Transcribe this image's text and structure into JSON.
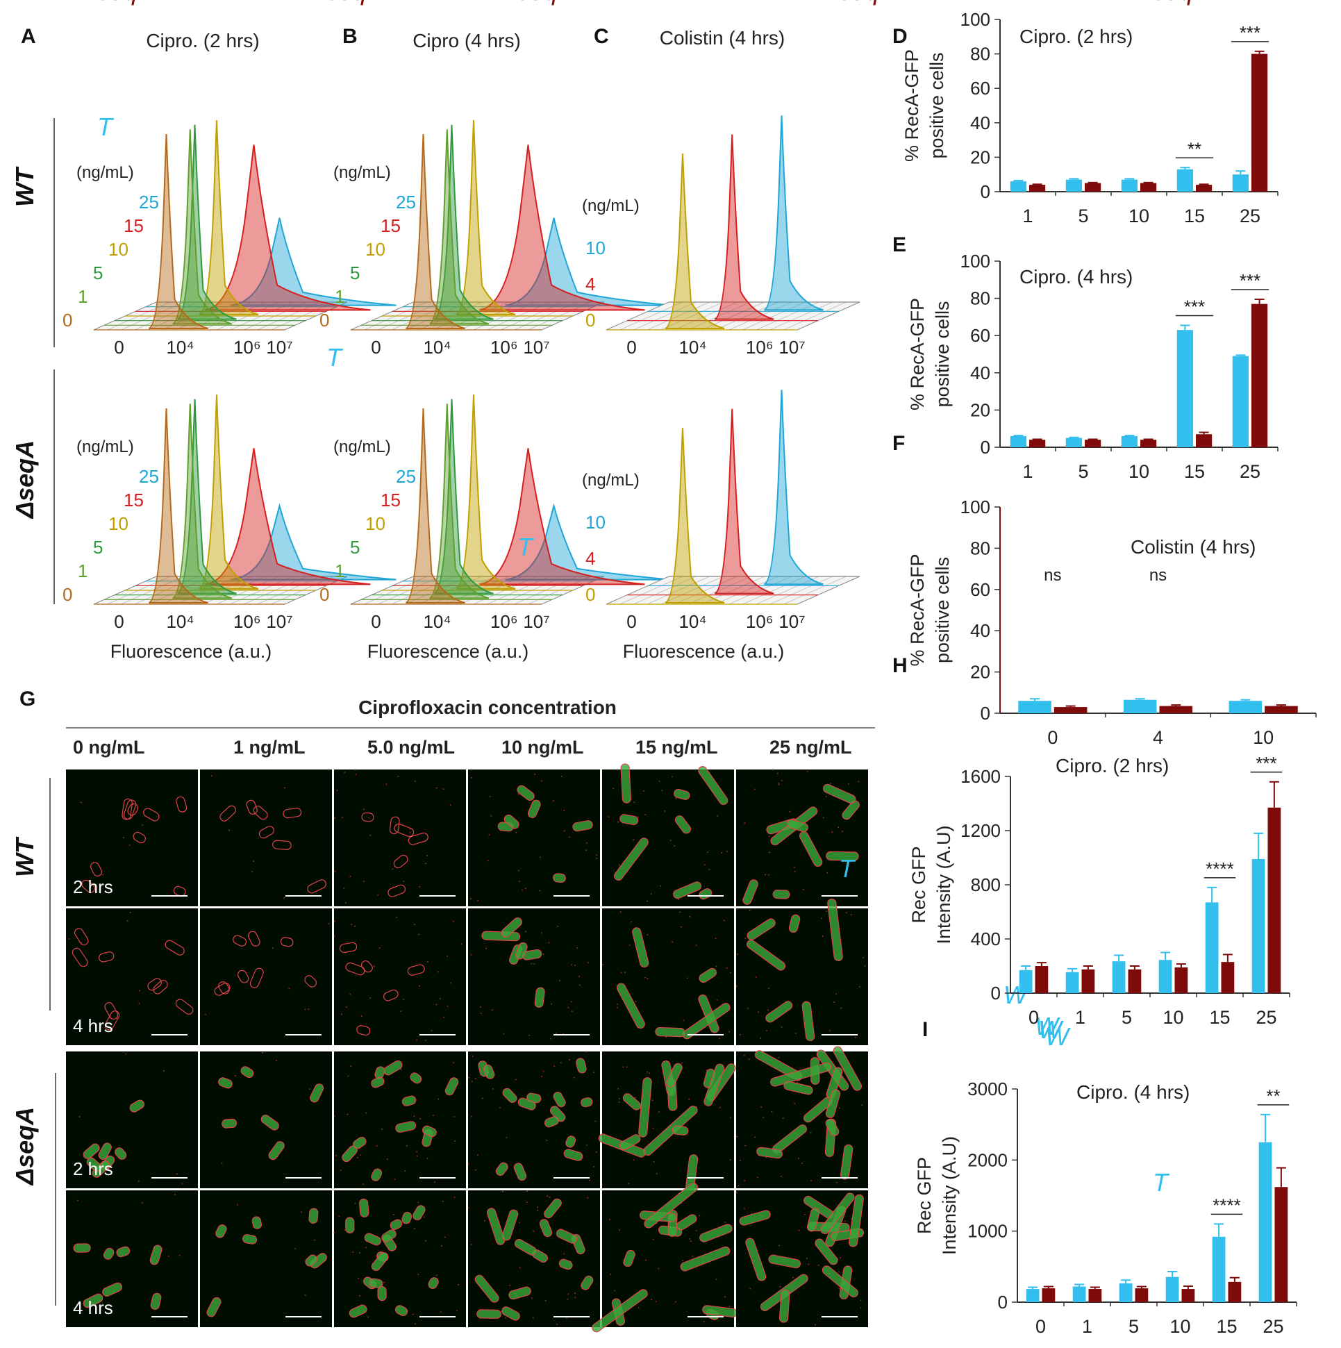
{
  "colors": {
    "wt": "#33bfee",
    "seqA": "#7f0a0a",
    "c0": "#b56a1a",
    "c1": "#5fa02f",
    "c5": "#2e9a3e",
    "c10": "#c0a000",
    "c15": "#d42020",
    "c25": "#1fa6d6",
    "cell_outline": "#e0424b",
    "micro_bg": "#020d02"
  },
  "panel_letters": [
    "A",
    "B",
    "C",
    "D",
    "E",
    "F",
    "G",
    "H",
    "I"
  ],
  "row_labels": {
    "wt": "WT",
    "seqA": "ΔseqA"
  },
  "flow": {
    "titles": [
      "Cipro. (2 hrs)",
      "Cipro (4 hrs)",
      "Colistin  (4 hrs)"
    ],
    "unit_label": "(ng/mL)",
    "cipro_levels": [
      "0",
      "1",
      "5",
      "10",
      "15",
      "25"
    ],
    "colistin_levels": [
      "0",
      "4",
      "10"
    ],
    "axis_ticks": [
      "0",
      "10⁴",
      "10⁶",
      "10⁷"
    ],
    "xlabel": "Fluorescence (a.u.)"
  },
  "microscopy": {
    "title": "Ciprofloxacin  concentration",
    "columns": [
      "0 ng/mL",
      "1 ng/mL",
      "5.0 ng/mL",
      "10 ng/mL",
      "15 ng/mL",
      "25 ng/mL"
    ],
    "time_labels": [
      "2 hrs",
      "4 hrs",
      "2 hrs",
      "4 hrs"
    ]
  },
  "chart_data": [
    {
      "id": "D",
      "type": "bar",
      "title": "Cipro. (2 hrs)",
      "ylabel": [
        "% RecA-GFP",
        "positive cells"
      ],
      "ylim": [
        0,
        100
      ],
      "yticks": [
        "0",
        "20",
        "40",
        "60",
        "80",
        "100"
      ],
      "categories": [
        "1",
        "5",
        "10",
        "15",
        "25"
      ],
      "series": [
        {
          "name": "WT",
          "values": [
            6,
            7,
            7,
            13,
            10
          ],
          "errors": [
            0.5,
            0.5,
            0.5,
            1,
            2
          ]
        },
        {
          "name": "ΔseqA",
          "values": [
            4,
            5,
            5,
            4,
            80
          ],
          "errors": [
            0.3,
            0.3,
            0.3,
            0.3,
            1.5
          ]
        }
      ],
      "significance": [
        {
          "category": 3,
          "label": "**"
        },
        {
          "category": 4,
          "label": "***"
        }
      ]
    },
    {
      "id": "E",
      "type": "bar",
      "title": "Cipro. (4 hrs)",
      "ylabel": [
        "% RecA-GFP",
        "positive cells"
      ],
      "ylim": [
        0,
        100
      ],
      "yticks": [
        "0",
        "20",
        "40",
        "60",
        "80",
        "100"
      ],
      "categories": [
        "1",
        "5",
        "10",
        "15",
        "25"
      ],
      "series": [
        {
          "name": "WT",
          "values": [
            6,
            5,
            6,
            63,
            49
          ],
          "errors": [
            0.3,
            0.3,
            0.3,
            2.5,
            0.5
          ]
        },
        {
          "name": "ΔseqA",
          "values": [
            4,
            4,
            4,
            7,
            77
          ],
          "errors": [
            0.3,
            0.3,
            0.3,
            1,
            2.5
          ]
        }
      ],
      "significance": [
        {
          "category": 3,
          "label": "***"
        },
        {
          "category": 4,
          "label": "***"
        }
      ]
    },
    {
      "id": "F",
      "type": "bar",
      "title": "Colistin  (4 hrs)",
      "ylabel": [
        "% RecA-GFP",
        "positive cells"
      ],
      "ylim": [
        0,
        100
      ],
      "yticks": [
        "0",
        "20",
        "40",
        "60",
        "80",
        "100"
      ],
      "categories": [
        "0",
        "4",
        "10"
      ],
      "series": [
        {
          "name": "WT",
          "values": [
            6,
            6.5,
            6
          ],
          "errors": [
            1,
            0.5,
            0.5
          ]
        },
        {
          "name": "ΔseqA",
          "values": [
            3,
            3.5,
            3.5
          ],
          "errors": [
            0.5,
            0.5,
            0.5
          ]
        }
      ],
      "significance": [
        {
          "category": 0,
          "label": "ns"
        },
        {
          "category": 1,
          "label": "ns"
        }
      ]
    },
    {
      "id": "H",
      "type": "bar",
      "title": "Cipro. (2 hrs)",
      "ylabel": [
        "Rec GFP",
        "Intensity (A.U)"
      ],
      "ylim": [
        0,
        1600
      ],
      "yticks": [
        "0",
        "400",
        "800",
        "1200",
        "1600"
      ],
      "categories": [
        "0",
        "1",
        "5",
        "10",
        "15",
        "25"
      ],
      "series": [
        {
          "name": "WT",
          "values": [
            170,
            155,
            235,
            245,
            670,
            990
          ],
          "errors": [
            30,
            25,
            45,
            55,
            110,
            190
          ]
        },
        {
          "name": "ΔseqA",
          "values": [
            200,
            175,
            175,
            190,
            230,
            1370
          ],
          "errors": [
            25,
            25,
            25,
            25,
            55,
            190
          ]
        }
      ],
      "significance": [
        {
          "category": 4,
          "label": "****"
        },
        {
          "category": 5,
          "label": "***"
        }
      ]
    },
    {
      "id": "I",
      "type": "bar",
      "title": "Cipro. (4 hrs)",
      "ylabel": [
        "Rec GFP",
        "Intensity (A.U)"
      ],
      "ylim": [
        0,
        3000
      ],
      "yticks": [
        "0",
        "1000",
        "2000",
        "3000"
      ],
      "categories": [
        "0",
        "1",
        "5",
        "10",
        "15",
        "25"
      ],
      "series": [
        {
          "name": "WT",
          "values": [
            185,
            220,
            265,
            355,
            920,
            2250
          ],
          "errors": [
            25,
            30,
            45,
            75,
            180,
            390
          ]
        },
        {
          "name": "ΔseqA",
          "values": [
            195,
            185,
            195,
            185,
            285,
            1620
          ],
          "errors": [
            25,
            25,
            25,
            40,
            60,
            270
          ]
        }
      ],
      "significance": [
        {
          "category": 4,
          "label": "****"
        },
        {
          "category": 5,
          "label": "**"
        }
      ]
    }
  ]
}
